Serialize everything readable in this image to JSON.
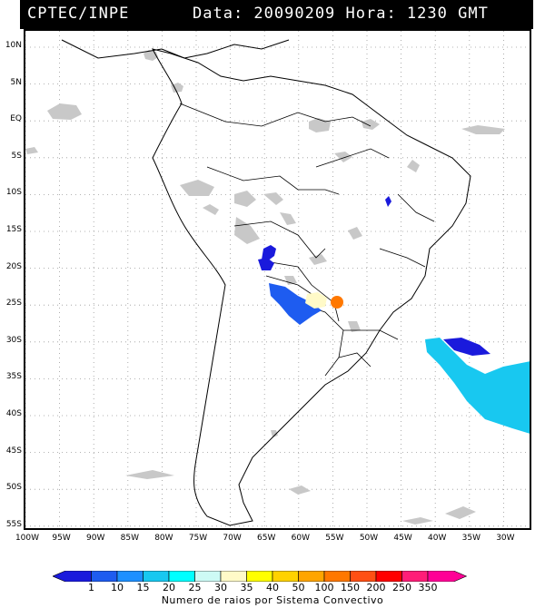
{
  "header": {
    "source": "CPTEC/INPE",
    "datetime": "Data: 20090209 Hora: 1230 GMT"
  },
  "map": {
    "latitude_labels": [
      "10N",
      "5N",
      "EQ",
      "5S",
      "10S",
      "15S",
      "20S",
      "25S",
      "30S",
      "35S",
      "40S",
      "45S",
      "50S",
      "55S"
    ],
    "longitude_labels": [
      "100W",
      "95W",
      "90W",
      "85W",
      "80W",
      "75W",
      "70W",
      "65W",
      "60W",
      "55W",
      "50W",
      "45W",
      "40W",
      "35W",
      "30W"
    ],
    "grid": "dotted"
  },
  "legend": {
    "ticks": [
      "1",
      "10",
      "15",
      "20",
      "25",
      "30",
      "35",
      "40",
      "50",
      "100",
      "150",
      "200",
      "250",
      "350"
    ],
    "colors": [
      "#1a1adc",
      "#1e5cf0",
      "#1e90ff",
      "#18c8f0",
      "#00ffff",
      "#cdfaf5",
      "#fffac8",
      "#ffff00",
      "#ffd200",
      "#ffa500",
      "#ff7800",
      "#ff5014",
      "#ff0000",
      "#ff1e78",
      "#ff0096"
    ],
    "caption": "Numero de raios por Sistema Convectivo"
  },
  "convective_systems": [
    {
      "name": "southeastern-atlantic-dark-blue",
      "color": "#1a1adc"
    },
    {
      "name": "southern-atlantic-cyan",
      "color": "#18c8f0"
    },
    {
      "name": "paraguay-orange",
      "color": "#ff7800"
    }
  ]
}
